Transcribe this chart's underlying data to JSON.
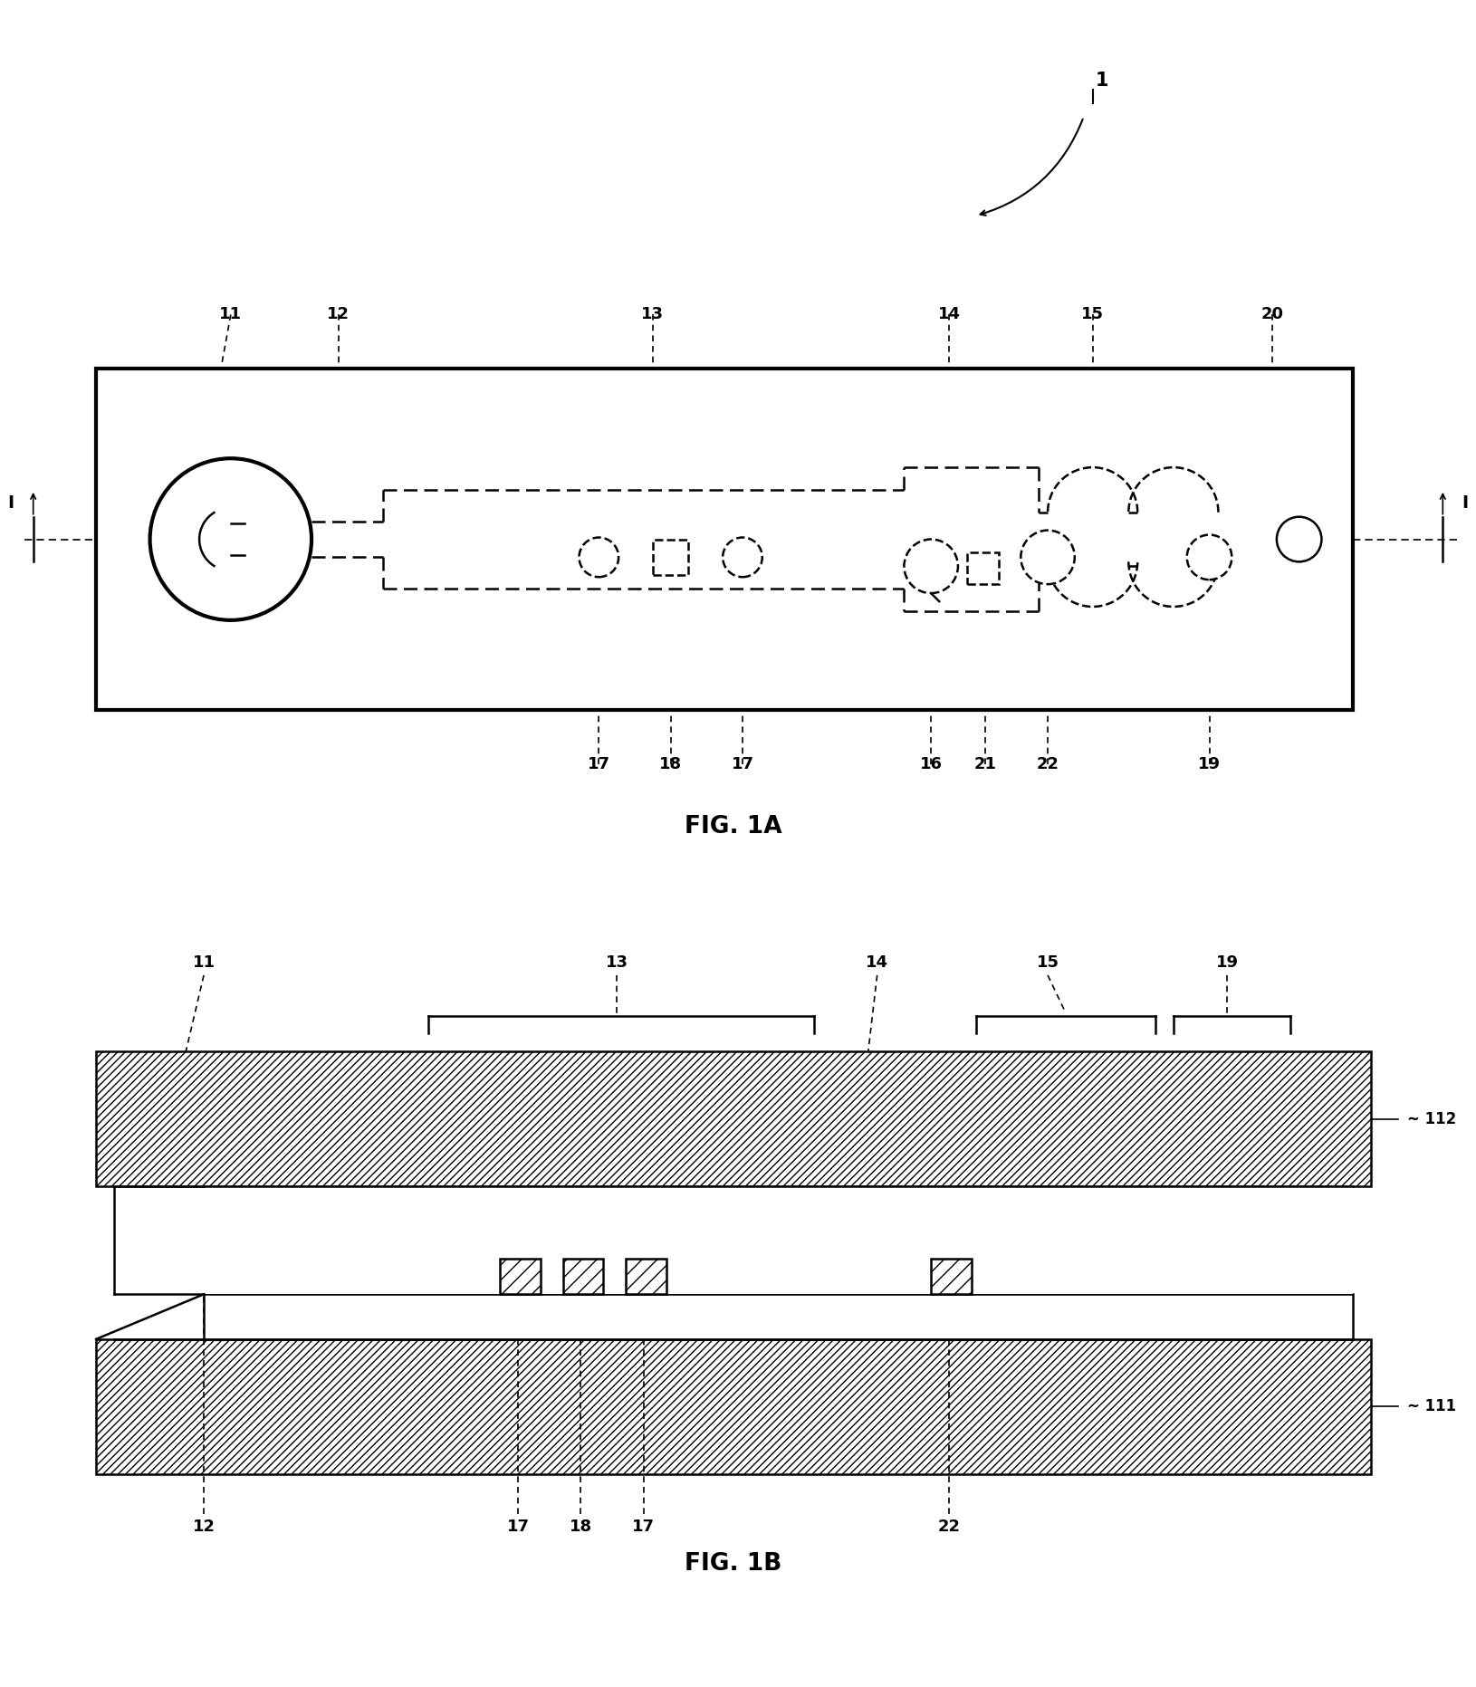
{
  "fig_width": 16.3,
  "fig_height": 18.63,
  "bg_color": "#ffffff",
  "line_color": "#000000",
  "fig1a_title": "FIG. 1A",
  "fig1b_title": "FIG. 1B",
  "ref_label": "1"
}
